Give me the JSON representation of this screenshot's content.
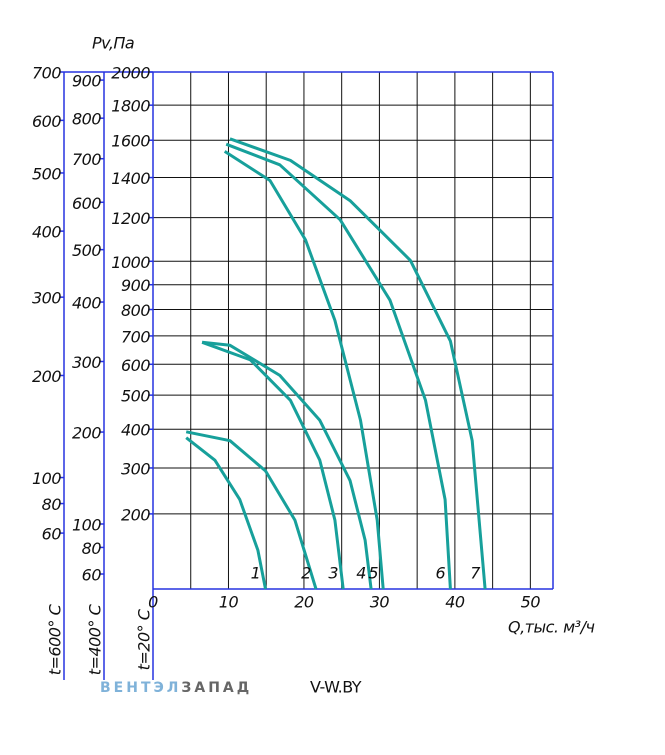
{
  "chart_data": {
    "type": "line",
    "ylabel": "Pv,Па",
    "xlabel": "Q,тыс. м³/ч",
    "temp_label": "t=20° C",
    "xlim": [
      0,
      53
    ],
    "xticks": [
      0,
      10,
      20,
      30,
      40,
      50
    ],
    "ylim": [
      80,
      2000
    ],
    "yscale": "sqrt",
    "yticks": [
      200,
      300,
      400,
      500,
      600,
      700,
      800,
      900,
      1000,
      1200,
      1400,
      1600,
      1800,
      2000
    ],
    "grid": true,
    "axis_color": "#2633e0",
    "extra_axes": [
      {
        "label": "t=600° C",
        "ylim": [
          30,
          700
        ],
        "yticks": [
          60,
          80,
          100,
          200,
          300,
          400,
          500,
          600,
          700
        ]
      },
      {
        "label": "t=400° C",
        "ylim": [
          50,
          922
        ],
        "yticks": [
          60,
          80,
          100,
          200,
          300,
          400,
          500,
          600,
          700,
          800,
          900
        ]
      }
    ],
    "series": [
      {
        "name": "1",
        "color": "#17a09b",
        "x": [
          4.4,
          8.2,
          11.5,
          13.9,
          14.9
        ],
        "values": [
          377,
          319,
          229,
          135,
          80
        ]
      },
      {
        "name": "2",
        "color": "#17a09b",
        "x": [
          4.4,
          10.2,
          14.9,
          18.8,
          21.6
        ],
        "values": [
          393,
          369,
          293,
          188,
          80
        ]
      },
      {
        "name": "3",
        "color": "#17a09b",
        "x": [
          6.5,
          12.9,
          18.2,
          22.1,
          24.1,
          25.2
        ],
        "values": [
          677,
          615,
          484,
          319,
          188,
          80
        ]
      },
      {
        "name": "4",
        "color": "#17a09b",
        "x": [
          6.5,
          10.2,
          16.8,
          22.1,
          26.1,
          28.1,
          28.9
        ],
        "values": [
          677,
          666,
          563,
          425,
          271,
          152,
          80
        ]
      },
      {
        "name": "5",
        "color": "#17a09b",
        "x": [
          9.5,
          15.5,
          20.2,
          24.1,
          27.5,
          29.7,
          30.5
        ],
        "values": [
          1539,
          1385,
          1096,
          758,
          425,
          188,
          80
        ]
      },
      {
        "name": "6",
        "color": "#17a09b",
        "x": [
          9.7,
          16.8,
          24.8,
          31.4,
          36.1,
          38.7,
          39.4
        ],
        "values": [
          1578,
          1467,
          1190,
          837,
          484,
          229,
          80
        ]
      },
      {
        "name": "7",
        "color": "#17a09b",
        "x": [
          10.2,
          18.2,
          26.1,
          34.1,
          39.4,
          42.3,
          44.0
        ],
        "values": [
          1608,
          1490,
          1283,
          1004,
          681,
          369,
          80
        ]
      }
    ]
  },
  "footer": {
    "brand_a": "ВЕНТЭЛ",
    "brand_b": "ЗАПАД",
    "site": "V-W.BY"
  }
}
